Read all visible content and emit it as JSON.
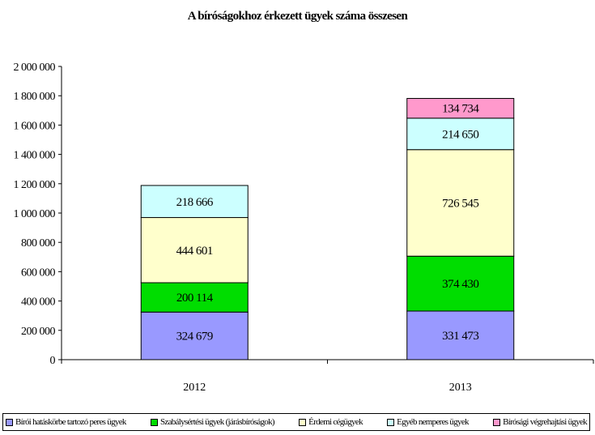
{
  "chart_data": {
    "type": "bar",
    "stacked": true,
    "title": "A bíróságokhoz érkezett ügyek száma összesen",
    "categories": [
      "2012",
      "2013"
    ],
    "ylim": [
      0,
      2000000
    ],
    "yticks": [
      "0",
      "200 000",
      "400 000",
      "600 000",
      "800 000",
      "1 000 000",
      "1 200 000",
      "1 400 000",
      "1 600 000",
      "1 800 000",
      "2 000 000"
    ],
    "ytick_values": [
      0,
      200000,
      400000,
      600000,
      800000,
      1000000,
      1200000,
      1400000,
      1600000,
      1800000,
      2000000
    ],
    "grid": false,
    "legend_position": "bottom",
    "series": [
      {
        "name": "Bírói hatáskörbe tartozó peres ügyek",
        "color": "#9999ff",
        "values": [
          324679,
          331473
        ],
        "labels": [
          "324 679",
          "331 473"
        ]
      },
      {
        "name": "Szabálysértési ügyek (járásbíróságok)",
        "color": "#00dd00",
        "values": [
          200114,
          374430
        ],
        "labels": [
          "200 114",
          "374 430"
        ]
      },
      {
        "name": "Érdemi cégügyek",
        "color": "#ffffcc",
        "values": [
          444601,
          726545
        ],
        "labels": [
          "444 601",
          "726 545"
        ]
      },
      {
        "name": "Egyéb nemperes ügyek",
        "color": "#ccffff",
        "values": [
          218666,
          214650
        ],
        "labels": [
          "218 666",
          "214 650"
        ]
      },
      {
        "name": "Bírósági végrehajtási ügyek",
        "color": "#ff99cc",
        "values": [
          null,
          134734
        ],
        "labels": [
          "",
          "134 734"
        ]
      }
    ]
  }
}
